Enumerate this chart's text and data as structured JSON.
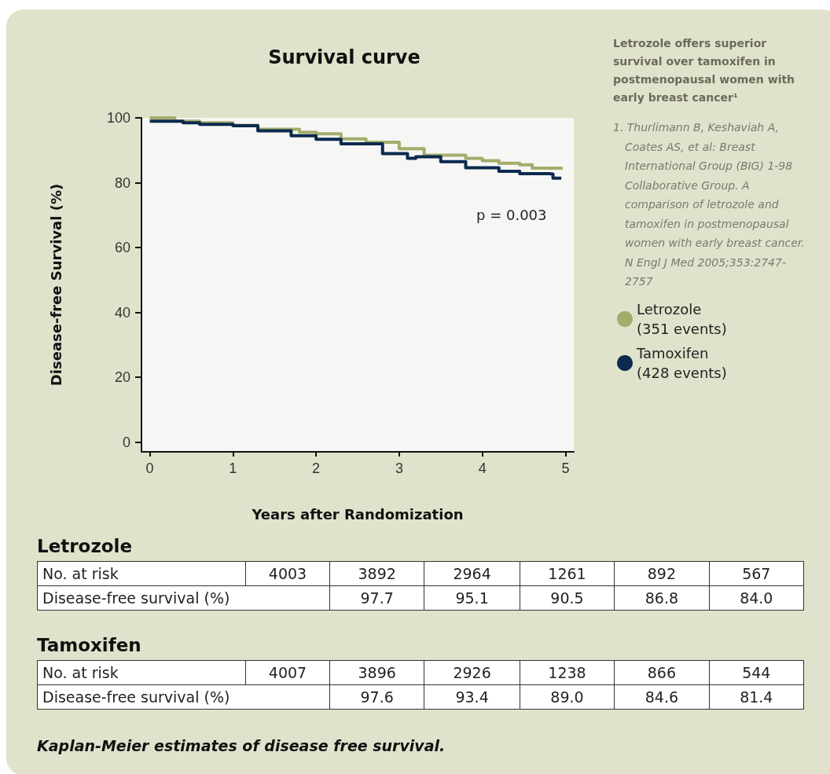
{
  "chart_data": {
    "type": "step",
    "title": "Survival curve",
    "subtitle": "Letrozole offers superior survival over tamoxifen in postmenopausal women with early breast cancer¹",
    "xlabel": "Years after Randomization",
    "ylabel": "Disease-free Survival (%)",
    "xlim": [
      -0.1,
      5.1
    ],
    "xticks": [
      0,
      1,
      2,
      3,
      4,
      5
    ],
    "ylim": [
      -3,
      100
    ],
    "yticks": [
      0,
      20,
      40,
      60,
      80,
      100
    ],
    "grid": false,
    "legend": "right",
    "marker": "none",
    "line_style": "solid",
    "series": [
      {
        "name": "Letrozole\n(351 events)",
        "color": "#a4ac6b",
        "x": [
          0,
          0.25,
          0.3,
          0.6,
          1,
          1.3,
          1.8,
          2,
          2.3,
          2.6,
          3,
          3.3,
          3.8,
          4,
          4.2,
          4.45,
          4.6,
          4.85,
          4.95
        ],
        "values": [
          100,
          100,
          99,
          98.5,
          97.7,
          96.5,
          95.6,
          95.1,
          93.5,
          92.5,
          90.5,
          88.5,
          87.5,
          86.8,
          86,
          85.5,
          84.5,
          84.5,
          84
        ]
      },
      {
        "name": "Tamoxifen\n(428 events)",
        "color": "#0b2a4e",
        "x": [
          0,
          0.3,
          0.4,
          0.6,
          1,
          1.3,
          1.7,
          2,
          2.3,
          2.8,
          3,
          3.1,
          3.2,
          3.5,
          3.8,
          4,
          4.2,
          4.45,
          4.8,
          4.85,
          4.95
        ],
        "values": [
          99,
          99,
          98.5,
          98,
          97.6,
          96,
          94.5,
          93.4,
          92,
          89,
          89,
          87.5,
          88,
          86.5,
          84.6,
          84.6,
          83.5,
          82.8,
          82.7,
          81.4,
          81.4
        ]
      }
    ],
    "annotations": [
      "p = 0.003",
      "1. Thurlimann B, Keshaviah A, Coates AS, et al: Breast International Group (BIG) 1-98 Collaborative Group. A comparison of letrozole and tamoxifen in postmenopausal women with early breast cancer. N Engl J Med 2005;353:2747-2757",
      "Kaplan-Meier estimates of disease free survival.",
      "Letrozole",
      "No. at risk",
      "4003",
      "3892",
      "2964",
      "1261",
      "892",
      "567",
      "Disease-free survival (%)",
      "97.7",
      "95.1",
      "90.5",
      "86.8",
      "84.0",
      "Tamoxifen",
      "No. at risk",
      "4007",
      "3896",
      "2926",
      "1238",
      "866",
      "544",
      "Disease-free survival (%)",
      "97.6",
      "93.4",
      "89.0",
      "84.6",
      "81.4"
    ]
  }
}
